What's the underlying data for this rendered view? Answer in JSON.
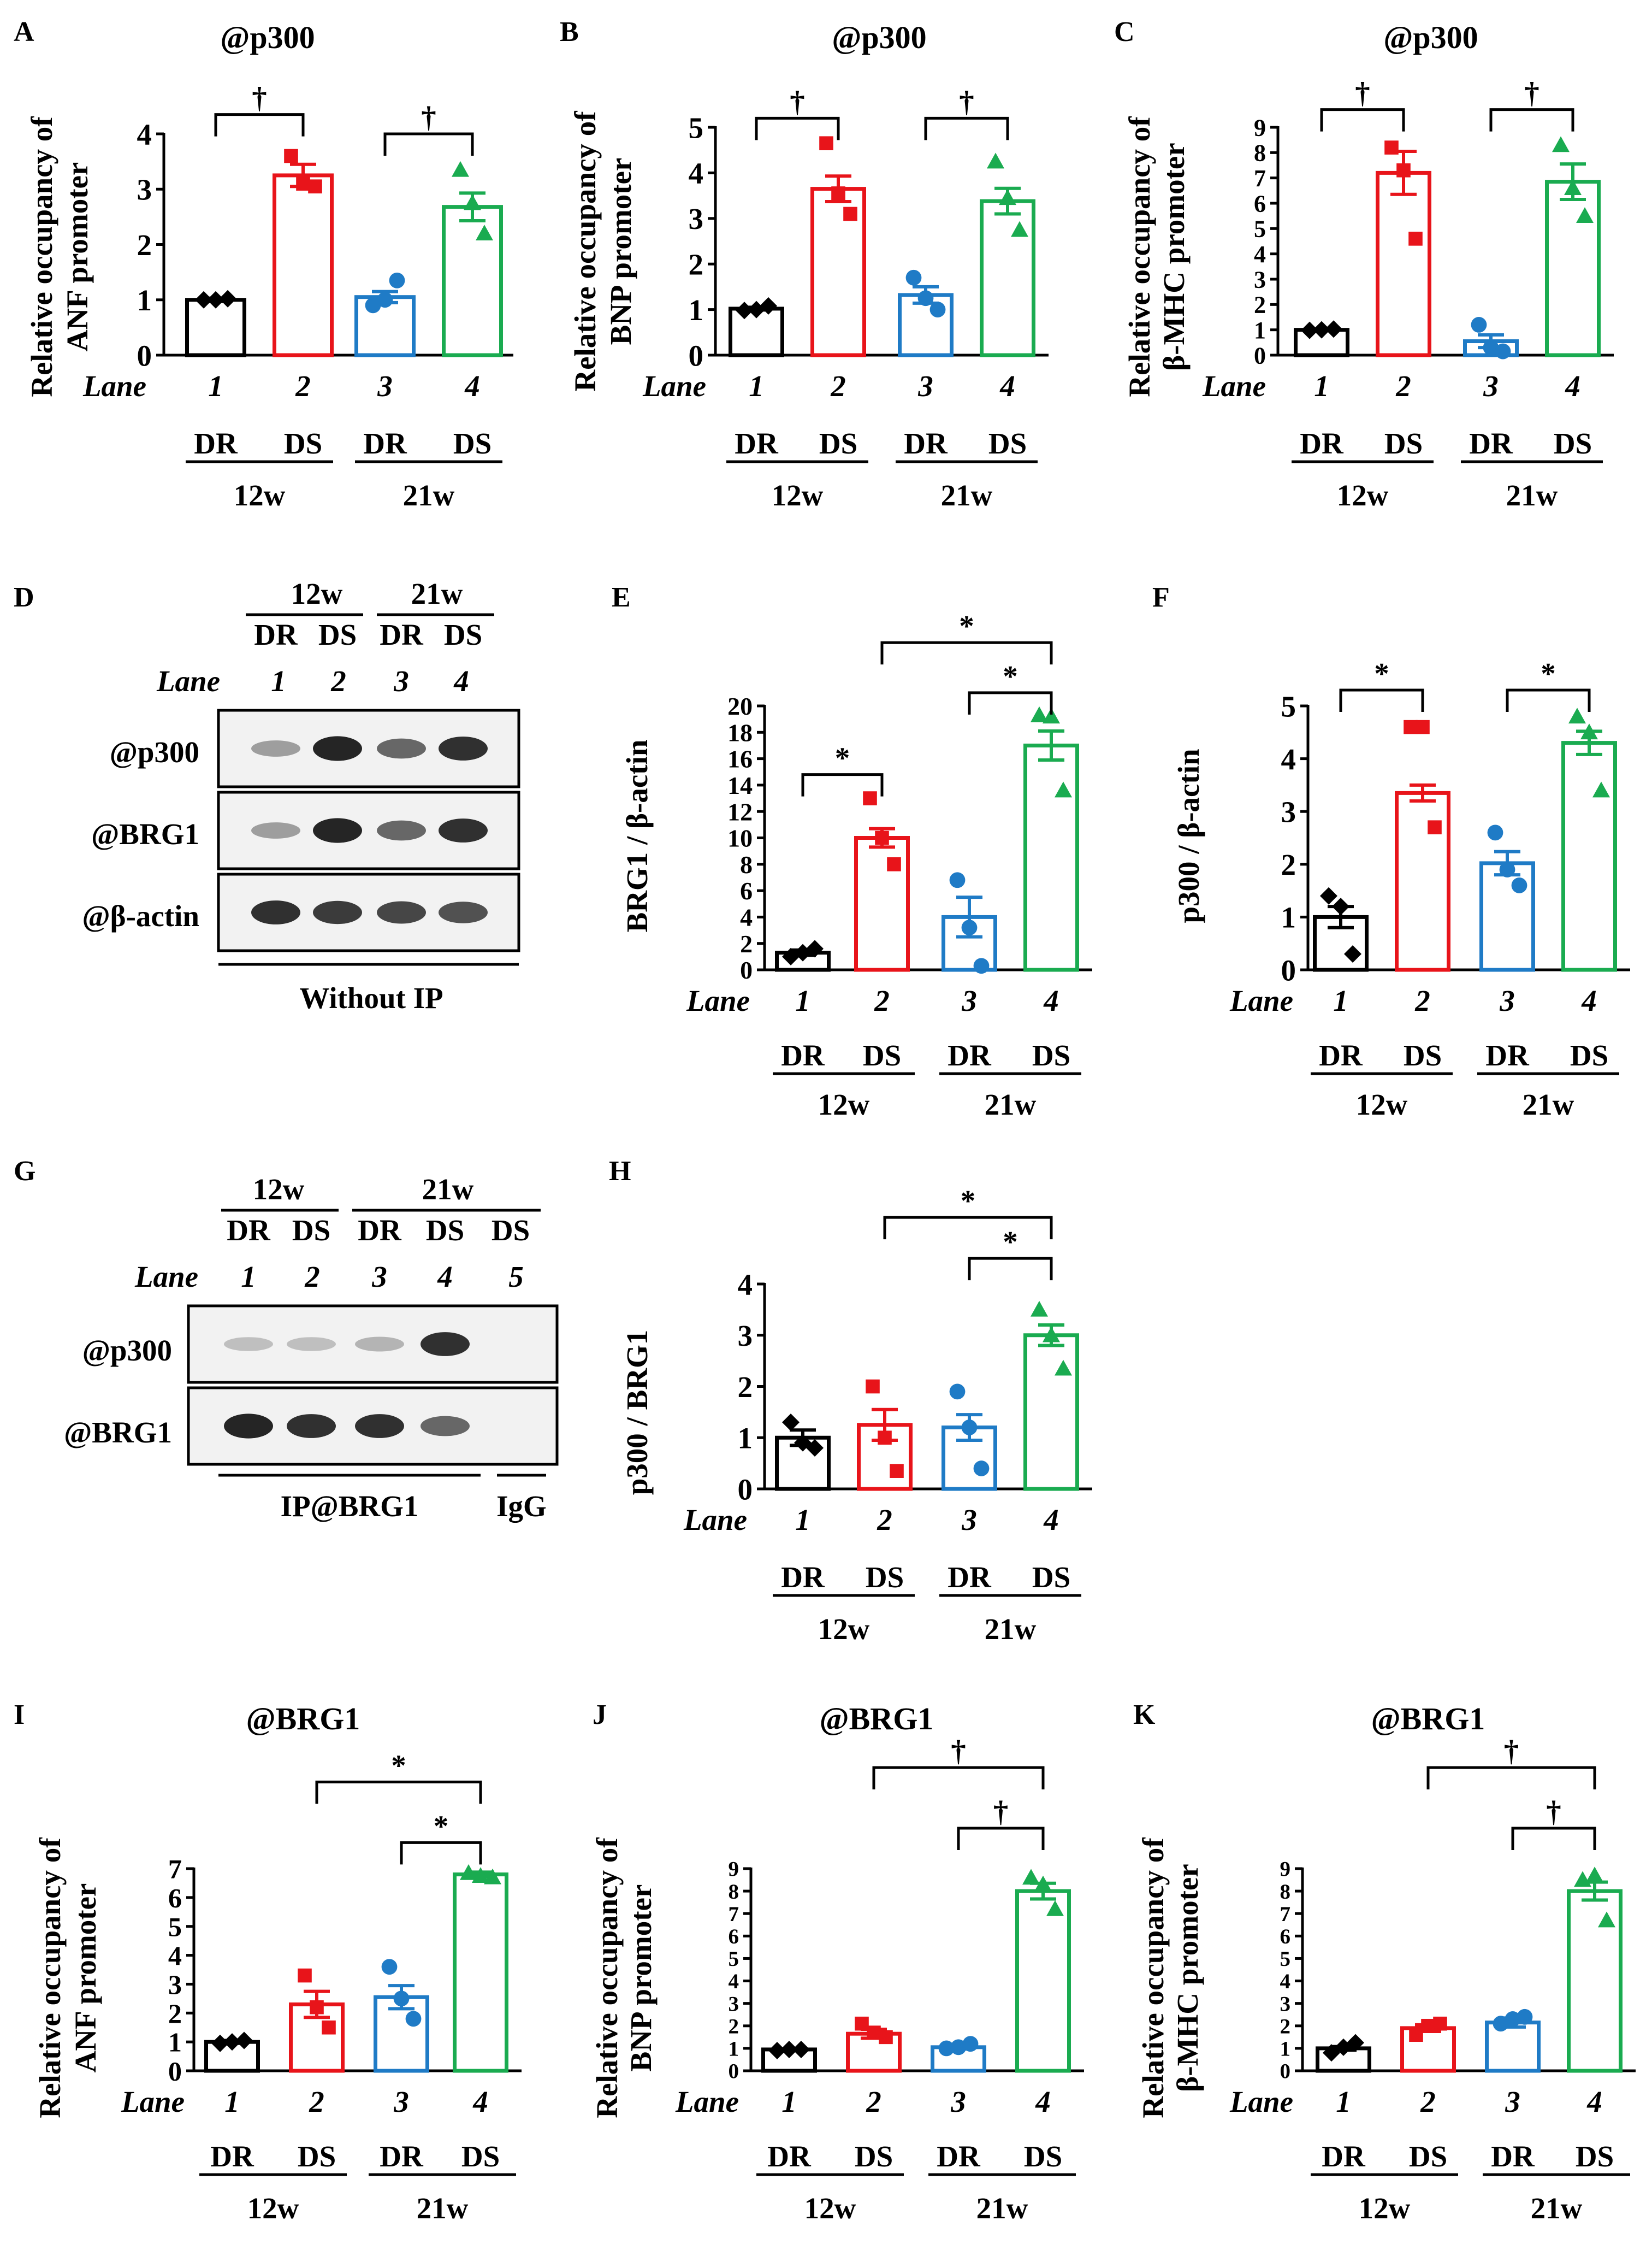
{
  "colors": {
    "lane1": "#000000",
    "lane2": "#e8141a",
    "lane3": "#1f7bc6",
    "lane4": "#1aab50"
  },
  "common": {
    "lane_label": "Lane",
    "lanes": [
      "1",
      "2",
      "3",
      "4"
    ],
    "conditions": [
      "DR",
      "DS",
      "DR",
      "DS"
    ],
    "ages": [
      "12w",
      "21w"
    ]
  },
  "chart_data": [
    {
      "panel": "A",
      "type": "bar",
      "title": "@p300",
      "ylabel": [
        "Relative occupancy of",
        "ANF promoter"
      ],
      "ylim": [
        0,
        4
      ],
      "yticks": [
        0,
        1,
        2,
        3,
        4
      ],
      "values": [
        1.0,
        3.25,
        1.05,
        2.68
      ],
      "errors": [
        0.03,
        0.2,
        0.1,
        0.25
      ],
      "points": [
        [
          1.0,
          1.0,
          1.02
        ],
        [
          3.6,
          3.1,
          3.05
        ],
        [
          0.9,
          1.0,
          1.35
        ],
        [
          3.35,
          2.75,
          2.2
        ]
      ],
      "markers": [
        "diamond",
        "square",
        "circle",
        "triangle"
      ],
      "comparisons": [
        {
          "from": 1,
          "to": 2,
          "label": "†",
          "level": 4.35
        },
        {
          "from": 3,
          "to": 4,
          "label": "†",
          "level": 4.0
        }
      ]
    },
    {
      "panel": "B",
      "type": "bar",
      "title": "@p300",
      "ylabel": [
        "Relative occupancy of",
        "BNP promoter"
      ],
      "ylim": [
        0,
        5
      ],
      "yticks": [
        0,
        1,
        2,
        3,
        4,
        5
      ],
      "values": [
        1.02,
        3.65,
        1.32,
        3.38
      ],
      "errors": [
        0.03,
        0.28,
        0.18,
        0.28
      ],
      "points": [
        [
          0.98,
          1.0,
          1.08
        ],
        [
          4.65,
          3.55,
          3.1
        ],
        [
          1.7,
          1.25,
          1.0
        ],
        [
          4.25,
          3.45,
          2.75
        ]
      ],
      "markers": [
        "diamond",
        "square",
        "circle",
        "triangle"
      ],
      "comparisons": [
        {
          "from": 1,
          "to": 2,
          "label": "†",
          "level": 5.2
        },
        {
          "from": 3,
          "to": 4,
          "label": "†",
          "level": 5.2
        }
      ]
    },
    {
      "panel": "C",
      "type": "bar",
      "title": "@p300",
      "ylabel": [
        "Relative occupancy of",
        "β-MHC promoter"
      ],
      "ylim": [
        0,
        9
      ],
      "yticks": [
        0,
        1,
        2,
        3,
        4,
        5,
        6,
        7,
        8,
        9
      ],
      "values": [
        1.0,
        7.2,
        0.55,
        6.85
      ],
      "errors": [
        0.03,
        0.85,
        0.25,
        0.7
      ],
      "points": [
        [
          0.98,
          1.0,
          1.03
        ],
        [
          8.2,
          7.3,
          4.6
        ],
        [
          1.2,
          0.3,
          0.15
        ],
        [
          8.3,
          6.6,
          5.5
        ]
      ],
      "markers": [
        "diamond",
        "square",
        "circle",
        "triangle"
      ],
      "comparisons": [
        {
          "from": 1,
          "to": 2,
          "label": "†",
          "level": 9.7
        },
        {
          "from": 3,
          "to": 4,
          "label": "†",
          "level": 9.7
        }
      ]
    },
    {
      "panel": "E",
      "type": "bar",
      "title": "",
      "ylabel": [
        "BRG1 / β-actin"
      ],
      "ylim": [
        0,
        20
      ],
      "yticks": [
        0,
        2,
        4,
        6,
        8,
        10,
        12,
        14,
        16,
        18,
        20
      ],
      "values": [
        1.3,
        10.0,
        4.0,
        17.0
      ],
      "errors": [
        0.2,
        0.7,
        1.5,
        1.1
      ],
      "points": [
        [
          1.0,
          1.3,
          1.6
        ],
        [
          13.0,
          10.0,
          8.0
        ],
        [
          6.8,
          3.2,
          0.3
        ],
        [
          19.3,
          19.2,
          13.6
        ]
      ],
      "markers": [
        "diamond",
        "square",
        "circle",
        "triangle"
      ],
      "comparisons": [
        {
          "from": 1,
          "to": 2,
          "label": "*",
          "level": 14.8
        },
        {
          "from": 3,
          "to": 4,
          "label": "*",
          "level": 21.0
        },
        {
          "from": 2,
          "to": 4,
          "label": "*",
          "level": 24.8
        }
      ]
    },
    {
      "panel": "F",
      "type": "bar",
      "title": "",
      "ylabel": [
        "p300 / β-actin"
      ],
      "ylim": [
        0,
        5
      ],
      "yticks": [
        0,
        1,
        2,
        3,
        4,
        5
      ],
      "values": [
        1.0,
        3.35,
        2.02,
        4.3
      ],
      "errors": [
        0.2,
        0.15,
        0.22,
        0.22
      ],
      "points": [
        [
          1.4,
          1.2,
          0.3
        ],
        [
          4.6,
          4.6,
          2.7
        ],
        [
          2.6,
          1.9,
          1.6
        ],
        [
          4.8,
          4.5,
          3.4
        ]
      ],
      "markers": [
        "diamond",
        "square",
        "circle",
        "triangle"
      ],
      "comparisons": [
        {
          "from": 1,
          "to": 2,
          "label": "*",
          "level": 5.3
        },
        {
          "from": 3,
          "to": 4,
          "label": "*",
          "level": 5.3
        }
      ]
    },
    {
      "panel": "H",
      "type": "bar",
      "title": "",
      "ylabel": [
        "p300 / BRG1"
      ],
      "ylim": [
        0,
        4
      ],
      "yticks": [
        0,
        1,
        2,
        3,
        4
      ],
      "values": [
        1.0,
        1.25,
        1.2,
        3.0
      ],
      "errors": [
        0.15,
        0.3,
        0.25,
        0.2
      ],
      "points": [
        [
          1.3,
          0.9,
          0.8
        ],
        [
          2.0,
          1.0,
          0.35
        ],
        [
          1.9,
          1.2,
          0.4
        ],
        [
          3.5,
          3.0,
          2.35
        ]
      ],
      "markers": [
        "diamond",
        "square",
        "circle",
        "triangle"
      ],
      "comparisons": [
        {
          "from": 3,
          "to": 4,
          "label": "*",
          "level": 4.5
        },
        {
          "from": 2,
          "to": 4,
          "label": "*",
          "level": 5.3
        }
      ]
    },
    {
      "panel": "I",
      "type": "bar",
      "title": "@BRG1",
      "ylabel": [
        "Relative occupancy of",
        "ANF promoter"
      ],
      "ylim": [
        0,
        7
      ],
      "yticks": [
        0,
        1,
        2,
        3,
        4,
        5,
        6,
        7
      ],
      "values": [
        1.0,
        2.3,
        2.55,
        6.8
      ],
      "errors": [
        0.05,
        0.45,
        0.4,
        0.08
      ],
      "points": [
        [
          0.95,
          1.0,
          1.05
        ],
        [
          3.3,
          2.2,
          1.5
        ],
        [
          3.6,
          2.5,
          1.8
        ],
        [
          6.85,
          6.75,
          6.7
        ]
      ],
      "markers": [
        "diamond",
        "square",
        "circle",
        "triangle"
      ],
      "comparisons": [
        {
          "from": 3,
          "to": 4,
          "label": "*",
          "level": 7.9
        },
        {
          "from": 2,
          "to": 4,
          "label": "*",
          "level": 10.0
        }
      ]
    },
    {
      "panel": "J",
      "type": "bar",
      "title": "@BRG1",
      "ylabel": [
        "Relative occupancy of",
        "BNP promoter"
      ],
      "ylim": [
        0,
        9
      ],
      "yticks": [
        0,
        1,
        2,
        3,
        4,
        5,
        6,
        7,
        8,
        9
      ],
      "values": [
        0.95,
        1.65,
        1.05,
        8.0
      ],
      "errors": [
        0.03,
        0.2,
        0.08,
        0.35
      ],
      "points": [
        [
          0.9,
          0.95,
          0.95
        ],
        [
          2.1,
          1.7,
          1.5
        ],
        [
          1.0,
          1.05,
          1.2
        ],
        [
          8.6,
          8.3,
          7.2
        ]
      ],
      "markers": [
        "diamond",
        "square",
        "circle",
        "triangle"
      ],
      "comparisons": [
        {
          "from": 3,
          "to": 4,
          "label": "†",
          "level": 10.8
        },
        {
          "from": 2,
          "to": 4,
          "label": "†",
          "level": 13.5
        }
      ]
    },
    {
      "panel": "K",
      "type": "bar",
      "title": "@BRG1",
      "ylabel": [
        "Relative occupancy of",
        "β-MHC promoter"
      ],
      "ylim": [
        0,
        9
      ],
      "yticks": [
        0,
        1,
        2,
        3,
        4,
        5,
        6,
        7,
        8,
        9
      ],
      "values": [
        1.0,
        1.9,
        2.15,
        8.0
      ],
      "errors": [
        0.08,
        0.15,
        0.2,
        0.4
      ],
      "points": [
        [
          0.8,
          1.05,
          1.25
        ],
        [
          1.6,
          2.0,
          2.1
        ],
        [
          2.1,
          2.3,
          2.4
        ],
        [
          8.5,
          8.7,
          6.7
        ]
      ],
      "markers": [
        "diamond",
        "square",
        "circle",
        "triangle"
      ],
      "comparisons": [
        {
          "from": 3,
          "to": 4,
          "label": "†",
          "level": 10.8
        },
        {
          "from": 2,
          "to": 4,
          "label": "†",
          "level": 13.5
        }
      ]
    }
  ],
  "blots": [
    {
      "panel": "D",
      "ages": [
        "12w",
        "21w"
      ],
      "conditions": [
        "DR",
        "DS",
        "DR",
        "DS"
      ],
      "lanes": [
        "1",
        "2",
        "3",
        "4"
      ],
      "rows": [
        "@p300",
        "@BRG1",
        "@β-actin"
      ],
      "intensity": [
        [
          0.35,
          0.9,
          0.6,
          0.85
        ],
        [
          0.35,
          0.9,
          0.6,
          0.85
        ],
        [
          0.85,
          0.8,
          0.75,
          0.7
        ]
      ],
      "footer": "Without IP"
    },
    {
      "panel": "G",
      "ages": [
        "12w",
        "21w"
      ],
      "conditions": [
        "DR",
        "DS",
        "DR",
        "DS",
        "DS"
      ],
      "lanes": [
        "1",
        "2",
        "3",
        "4",
        "5"
      ],
      "rows": [
        "@p300",
        "@BRG1"
      ],
      "intensity": [
        [
          0.2,
          0.2,
          0.25,
          0.85,
          0.0
        ],
        [
          0.9,
          0.85,
          0.85,
          0.6,
          0.0
        ]
      ],
      "footer_ip": "IP@BRG1",
      "footer_igg": "IgG"
    }
  ]
}
